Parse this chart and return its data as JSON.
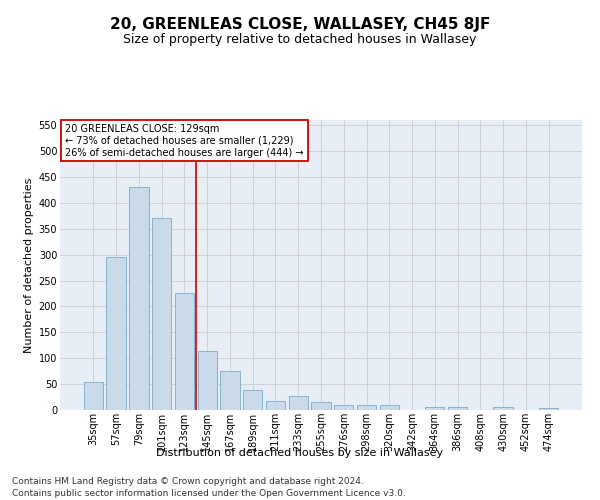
{
  "title": "20, GREENLEAS CLOSE, WALLASEY, CH45 8JF",
  "subtitle": "Size of property relative to detached houses in Wallasey",
  "xlabel": "Distribution of detached houses by size in Wallasey",
  "ylabel": "Number of detached properties",
  "categories": [
    "35sqm",
    "57sqm",
    "79sqm",
    "101sqm",
    "123sqm",
    "145sqm",
    "167sqm",
    "189sqm",
    "211sqm",
    "233sqm",
    "255sqm",
    "276sqm",
    "298sqm",
    "320sqm",
    "342sqm",
    "364sqm",
    "386sqm",
    "408sqm",
    "430sqm",
    "452sqm",
    "474sqm"
  ],
  "values": [
    55,
    295,
    430,
    370,
    225,
    113,
    75,
    38,
    17,
    27,
    15,
    10,
    10,
    10,
    0,
    5,
    5,
    0,
    5,
    0,
    4
  ],
  "bar_color": "#c9daea",
  "bar_edge_color": "#7aaac8",
  "vline_x_idx": 4,
  "vline_color": "#cc0000",
  "annotation_text": "20 GREENLEAS CLOSE: 129sqm\n← 73% of detached houses are smaller (1,229)\n26% of semi-detached houses are larger (444) →",
  "annotation_box_color": "#ffffff",
  "annotation_box_edge": "#cc0000",
  "ylim": [
    0,
    560
  ],
  "yticks": [
    0,
    50,
    100,
    150,
    200,
    250,
    300,
    350,
    400,
    450,
    500,
    550
  ],
  "grid_color": "#cccccc",
  "background_color": "#e8eef5",
  "footer_text": "Contains HM Land Registry data © Crown copyright and database right 2024.\nContains public sector information licensed under the Open Government Licence v3.0.",
  "title_fontsize": 11,
  "subtitle_fontsize": 9,
  "xlabel_fontsize": 8,
  "ylabel_fontsize": 8,
  "tick_fontsize": 7,
  "footer_fontsize": 6.5
}
